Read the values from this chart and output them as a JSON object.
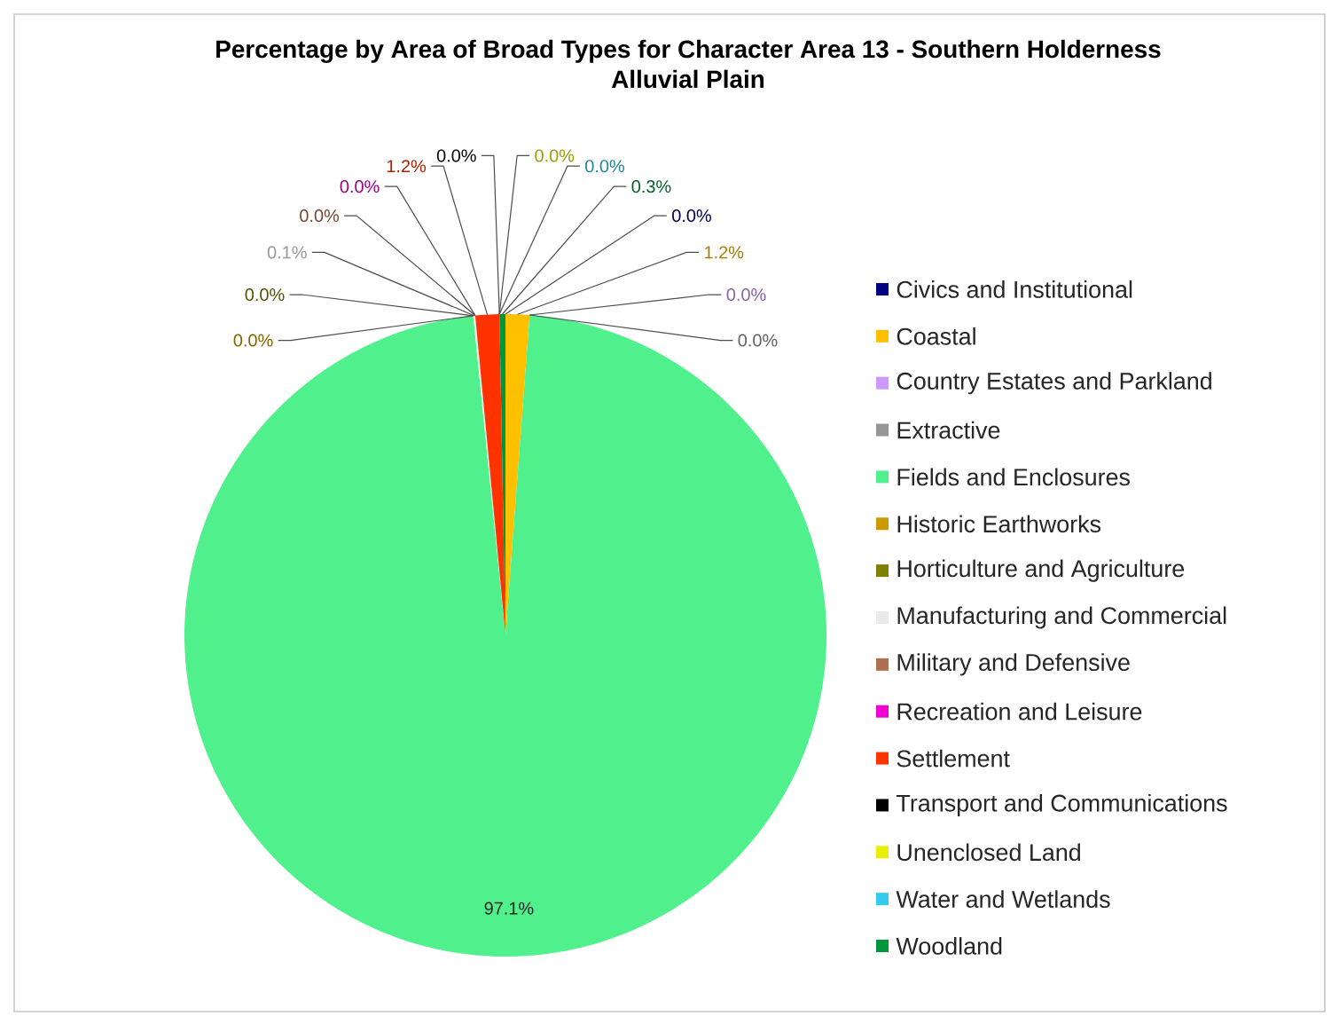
{
  "chart_data": {
    "type": "pie",
    "title": "Percentage by Area of Broad Types for Character Area 13 - Southern Holderness Alluvial Plain",
    "categories": [
      "Civics and Institutional",
      "Coastal",
      "Country Estates and Parkland",
      "Extractive",
      "Fields and Enclosures",
      "Historic Earthworks",
      "Horticulture and Agriculture",
      "Manufacturing and Commercial",
      "Military and Defensive",
      "Recreation and Leisure",
      "Settlement",
      "Transport and Communications",
      "Unenclosed Land",
      "Water and Wetlands",
      "Woodland"
    ],
    "values": [
      0.0,
      1.2,
      0.0,
      0.0,
      97.1,
      0.0,
      0.0,
      0.1,
      0.0,
      0.0,
      1.2,
      0.0,
      0.0,
      0.0,
      0.3
    ],
    "value_labels": [
      "0.0%",
      "1.2%",
      "0.0%",
      "0.0%",
      "97.1%",
      "0.0%",
      "0.0%",
      "0.1%",
      "0.0%",
      "0.0%",
      "1.2%",
      "0.0%",
      "0.0%",
      "0.0%",
      "0.3%"
    ],
    "colors": [
      "#000080",
      "#FFC000",
      "#CC99FF",
      "#969696",
      "#50F08C",
      "#CC9900",
      "#808000",
      "#EAEAEA",
      "#B07050",
      "#F000D0",
      "#FF3300",
      "#000000",
      "#E8F000",
      "#33CCEE",
      "#00963C"
    ],
    "legend": "right"
  }
}
